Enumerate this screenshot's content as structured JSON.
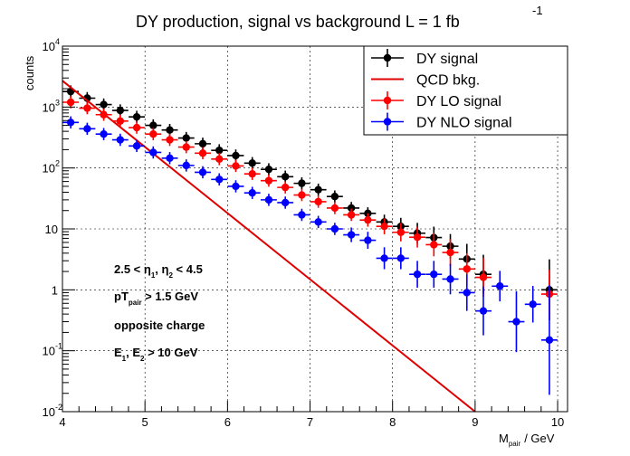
{
  "chart_data": {
    "type": "scatter",
    "title": "DY production, signal vs background L = 1 fb",
    "title_superscript": "-1",
    "xlabel": "M",
    "xlabel_sub": "pair",
    "xlabel_unit": "/ GeV",
    "ylabel": "counts",
    "xlim": [
      4,
      10.12
    ],
    "ylim": [
      0.01,
      10000
    ],
    "yscale": "log",
    "grid": true,
    "legend_position": "top-right",
    "x_ticks": [
      "4",
      "5",
      "6",
      "7",
      "8",
      "9",
      "10"
    ],
    "y_ticks": [
      {
        "base": "10",
        "exp": "-2"
      },
      {
        "base": "10",
        "exp": "-1"
      },
      {
        "base": "1",
        "exp": ""
      },
      {
        "base": "10",
        "exp": ""
      },
      {
        "base": "10",
        "exp": "2"
      },
      {
        "base": "10",
        "exp": "3"
      },
      {
        "base": "10",
        "exp": "4"
      }
    ],
    "series": [
      {
        "name": "DY signal",
        "color": "#000000",
        "kind": "points",
        "x": [
          4.1,
          4.3,
          4.5,
          4.7,
          4.9,
          5.1,
          5.3,
          5.5,
          5.7,
          5.9,
          6.1,
          6.3,
          6.5,
          6.7,
          6.9,
          7.1,
          7.3,
          7.5,
          7.7,
          7.9,
          8.1,
          8.3,
          8.5,
          8.7,
          8.9,
          9.1,
          9.3,
          9.5,
          9.7,
          9.9
        ],
        "y": [
          1800,
          1400,
          1100,
          880,
          690,
          500,
          420,
          310,
          250,
          195,
          160,
          120,
          95,
          72,
          56,
          44,
          34,
          22,
          18,
          13,
          11,
          8.5,
          7.2,
          5.2,
          3.2,
          1.8,
          null,
          null,
          null,
          1.0
        ],
        "err": [
          0.1,
          0.1,
          0.1,
          0.1,
          0.1,
          0.1,
          0.1,
          0.1,
          0.1,
          0.1,
          0.1,
          0.1,
          0.1,
          0.1,
          0.1,
          0.1,
          0.1,
          0.1,
          0.1,
          0.12,
          0.14,
          0.17,
          0.18,
          0.2,
          0.25,
          0.32,
          null,
          null,
          null,
          0.5
        ]
      },
      {
        "name": "QCD bkg.",
        "color": "#e00000",
        "kind": "line",
        "x": [
          4.0,
          9.0
        ],
        "y": [
          2700,
          0.01
        ]
      },
      {
        "name": "DY LO signal",
        "color": "#ff0000",
        "kind": "points",
        "x": [
          4.1,
          4.3,
          4.5,
          4.7,
          4.9,
          5.1,
          5.3,
          5.5,
          5.7,
          5.9,
          6.1,
          6.3,
          6.5,
          6.7,
          6.9,
          7.1,
          7.3,
          7.5,
          7.7,
          7.9,
          8.1,
          8.3,
          8.5,
          8.7,
          8.9,
          9.1,
          9.3,
          9.5,
          9.7,
          9.9
        ],
        "y": [
          1200,
          960,
          750,
          590,
          460,
          360,
          290,
          220,
          175,
          140,
          108,
          80,
          62,
          48,
          36,
          28,
          22,
          17,
          14,
          11,
          8.8,
          7.3,
          5.5,
          4.1,
          2.2,
          1.6,
          null,
          null,
          null,
          0.85
        ],
        "err": [
          0.1,
          0.1,
          0.1,
          0.1,
          0.1,
          0.1,
          0.1,
          0.1,
          0.1,
          0.1,
          0.1,
          0.1,
          0.1,
          0.1,
          0.1,
          0.1,
          0.1,
          0.1,
          0.11,
          0.13,
          0.15,
          0.17,
          0.19,
          0.22,
          0.26,
          0.32,
          null,
          null,
          null,
          0.4
        ]
      },
      {
        "name": "DY NLO signal",
        "color": "#0000ff",
        "kind": "points",
        "x": [
          4.1,
          4.3,
          4.5,
          4.7,
          4.9,
          5.1,
          5.3,
          5.5,
          5.7,
          5.9,
          6.1,
          6.3,
          6.5,
          6.7,
          6.9,
          7.1,
          7.3,
          7.5,
          7.7,
          7.9,
          8.1,
          8.3,
          8.5,
          8.7,
          8.9,
          9.1,
          9.3,
          9.5,
          9.7,
          9.9
        ],
        "y": [
          560,
          440,
          360,
          290,
          230,
          180,
          145,
          110,
          85,
          65,
          50,
          39,
          30,
          27,
          17,
          13,
          10,
          8.0,
          6.5,
          3.3,
          3.3,
          1.8,
          1.8,
          1.5,
          0.9,
          0.45,
          1.15,
          0.3,
          0.58,
          0.15
        ],
        "err": [
          0.1,
          0.1,
          0.1,
          0.1,
          0.1,
          0.1,
          0.1,
          0.1,
          0.1,
          0.1,
          0.1,
          0.1,
          0.1,
          0.1,
          0.1,
          0.1,
          0.1,
          0.12,
          0.14,
          0.18,
          0.18,
          0.22,
          0.22,
          0.25,
          0.3,
          0.4,
          0.25,
          0.5,
          0.3,
          0.9
        ]
      }
    ],
    "annotations": [
      {
        "parts": [
          [
            "2.5 < η",
            ""
          ],
          [
            "1",
            "sub"
          ],
          [
            ", η",
            ""
          ],
          [
            "2",
            "sub"
          ],
          [
            " < 4.5",
            ""
          ]
        ]
      },
      {
        "parts": [
          [
            "pT",
            ""
          ],
          [
            "pair",
            "sub"
          ],
          [
            " > 1.5 GeV",
            ""
          ]
        ]
      },
      {
        "parts": [
          [
            "opposite charge",
            ""
          ]
        ]
      },
      {
        "parts": [
          [
            "E",
            ""
          ],
          [
            "1",
            "sub"
          ],
          [
            ", E",
            ""
          ],
          [
            "2",
            "sub"
          ],
          [
            " > 10 GeV",
            ""
          ]
        ]
      }
    ]
  }
}
